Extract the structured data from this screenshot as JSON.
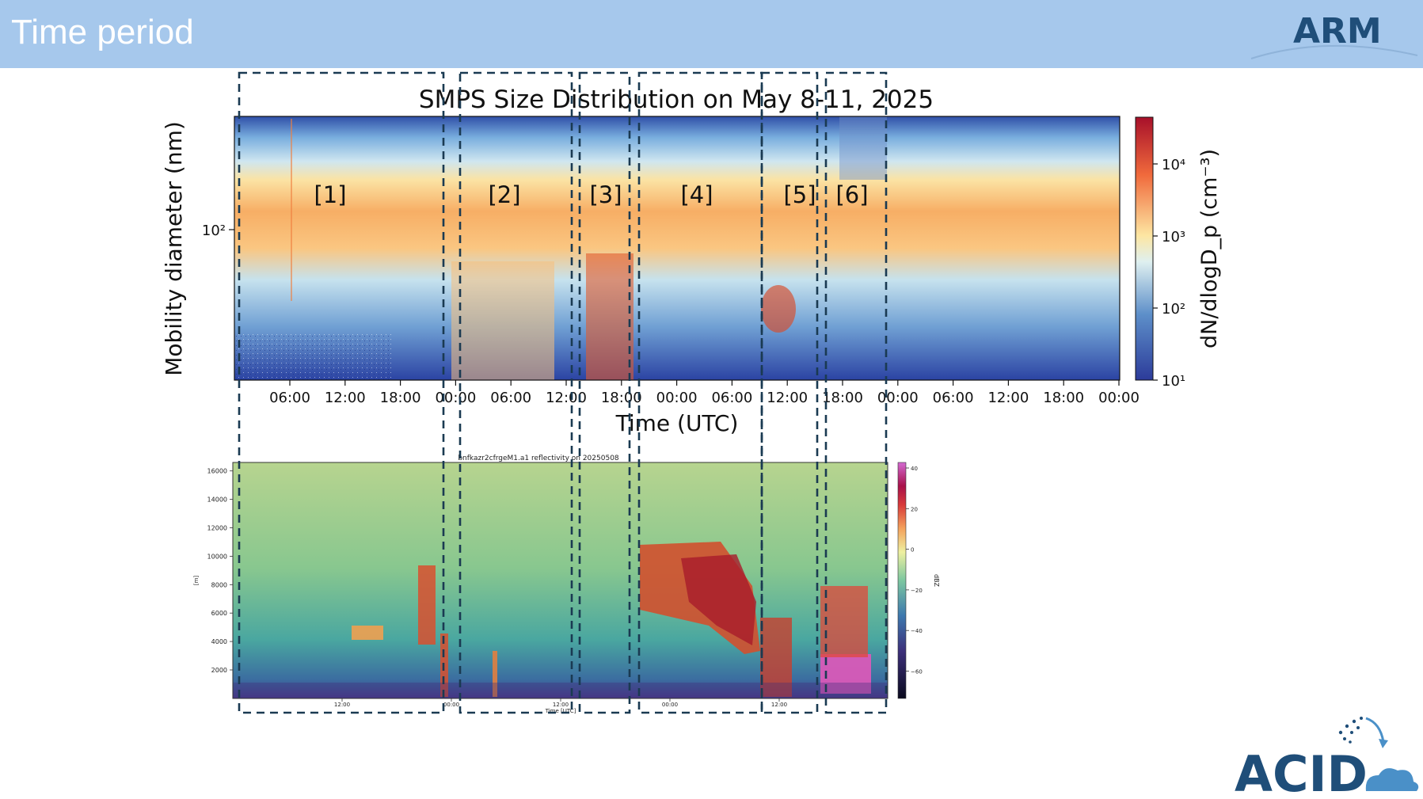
{
  "header": {
    "title": "Time period"
  },
  "logos": {
    "arm": "ARM",
    "acid": "ACID"
  },
  "colors": {
    "header_bg": "#a6c8ec",
    "dash": "#1a3a52",
    "brand_blue": "#1f4e79"
  },
  "chart_data": [
    {
      "type": "heatmap",
      "title": "SMPS Size Distribution on May 8-11, 2025",
      "xlabel": "Time (UTC)",
      "ylabel": "Mobility diameter (nm)",
      "y_tick_labels": [
        "10²"
      ],
      "x_tick_labels": [
        "06:00",
        "12:00",
        "18:00",
        "00:00",
        "06:00",
        "12:00",
        "18:00",
        "00:00",
        "06:00",
        "12:00",
        "18:00",
        "00:00",
        "06:00",
        "12:00",
        "18:00",
        "00:00"
      ],
      "colorbar_label": "dN/dlogD_p (cm⁻³)",
      "colorbar_ticks": [
        "10¹",
        "10²",
        "10³",
        "10⁴"
      ],
      "period_labels": [
        "[1]",
        "[2]",
        "[3]",
        "[4]",
        "[5]",
        "[6]"
      ]
    },
    {
      "type": "heatmap",
      "title": "bnfkazr2cfrgeM1.a1 reflectivity on 20250508",
      "xlabel": "Time [UTC]",
      "ylabel": "[m]",
      "y_tick_labels": [
        "2000",
        "4000",
        "6000",
        "8000",
        "10000",
        "12000",
        "14000",
        "16000"
      ],
      "x_tick_labels": [
        "12:00",
        "00:00",
        "12:00",
        "00:00",
        "12:00"
      ],
      "colorbar_label": "dBZ",
      "colorbar_ticks": [
        "40",
        "20",
        "0",
        "−20",
        "−40",
        "−60"
      ]
    }
  ]
}
